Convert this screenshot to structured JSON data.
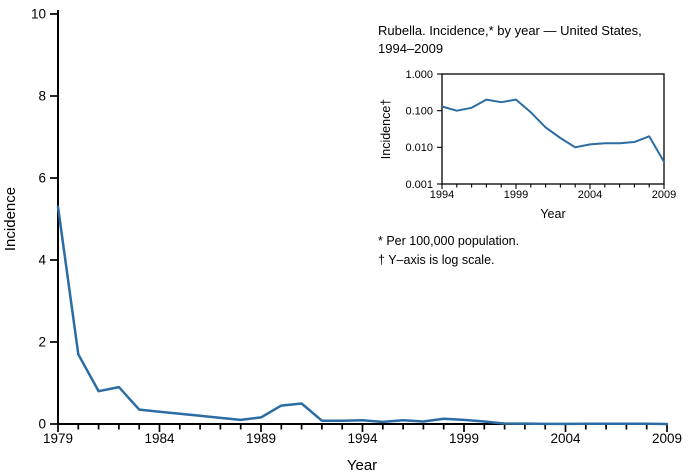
{
  "line_color": "#2b6ca3",
  "axis_color": "#000000",
  "footnotes": [
    "* Per 100,000 population.",
    "† Y–axis is log scale."
  ],
  "chart_data": [
    {
      "type": "line",
      "title": "",
      "xlabel": "Year",
      "ylabel": "Incidence",
      "yscale": "linear",
      "ylim": [
        0,
        10
      ],
      "yticks": [
        0,
        2,
        4,
        6,
        8,
        10
      ],
      "ytick_labels": [
        "0",
        "2",
        "4",
        "6",
        "8",
        "10"
      ],
      "xticks_labeled": [
        1979,
        1984,
        1989,
        1994,
        1999,
        2004,
        2009
      ],
      "x": [
        1979,
        1980,
        1981,
        1982,
        1983,
        1984,
        1985,
        1986,
        1987,
        1988,
        1989,
        1990,
        1991,
        1992,
        1993,
        1994,
        1995,
        1996,
        1997,
        1998,
        1999,
        2000,
        2001,
        2002,
        2003,
        2004,
        2005,
        2006,
        2007,
        2008,
        2009
      ],
      "values": [
        5.3,
        1.7,
        0.8,
        0.9,
        0.35,
        0.3,
        0.25,
        0.2,
        0.15,
        0.1,
        0.16,
        0.45,
        0.5,
        0.08,
        0.08,
        0.09,
        0.05,
        0.09,
        0.06,
        0.13,
        0.1,
        0.06,
        0.01,
        0.01,
        0.003,
        0.003,
        0.004,
        0.004,
        0.004,
        0.006,
        0.001
      ],
      "legend": [],
      "grid": false
    },
    {
      "type": "line",
      "title": "Rubella. Incidence,* by year — United States, 1994–2009",
      "xlabel": "Year",
      "ylabel": "Incidence†",
      "yscale": "log",
      "ylim": [
        0.001,
        1.0
      ],
      "yticks": [
        0.001,
        0.01,
        0.1,
        1.0
      ],
      "ytick_labels": [
        "0.001",
        "0.010",
        "0.100",
        "1.000"
      ],
      "xticks_labeled": [
        1994,
        1999,
        2004,
        2009
      ],
      "x": [
        1994,
        1995,
        1996,
        1997,
        1998,
        1999,
        2000,
        2001,
        2002,
        2003,
        2004,
        2005,
        2006,
        2007,
        2008,
        2009
      ],
      "values": [
        0.13,
        0.1,
        0.12,
        0.2,
        0.17,
        0.2,
        0.09,
        0.035,
        0.018,
        0.01,
        0.012,
        0.013,
        0.013,
        0.014,
        0.02,
        0.004
      ],
      "legend": [],
      "grid": false
    }
  ]
}
